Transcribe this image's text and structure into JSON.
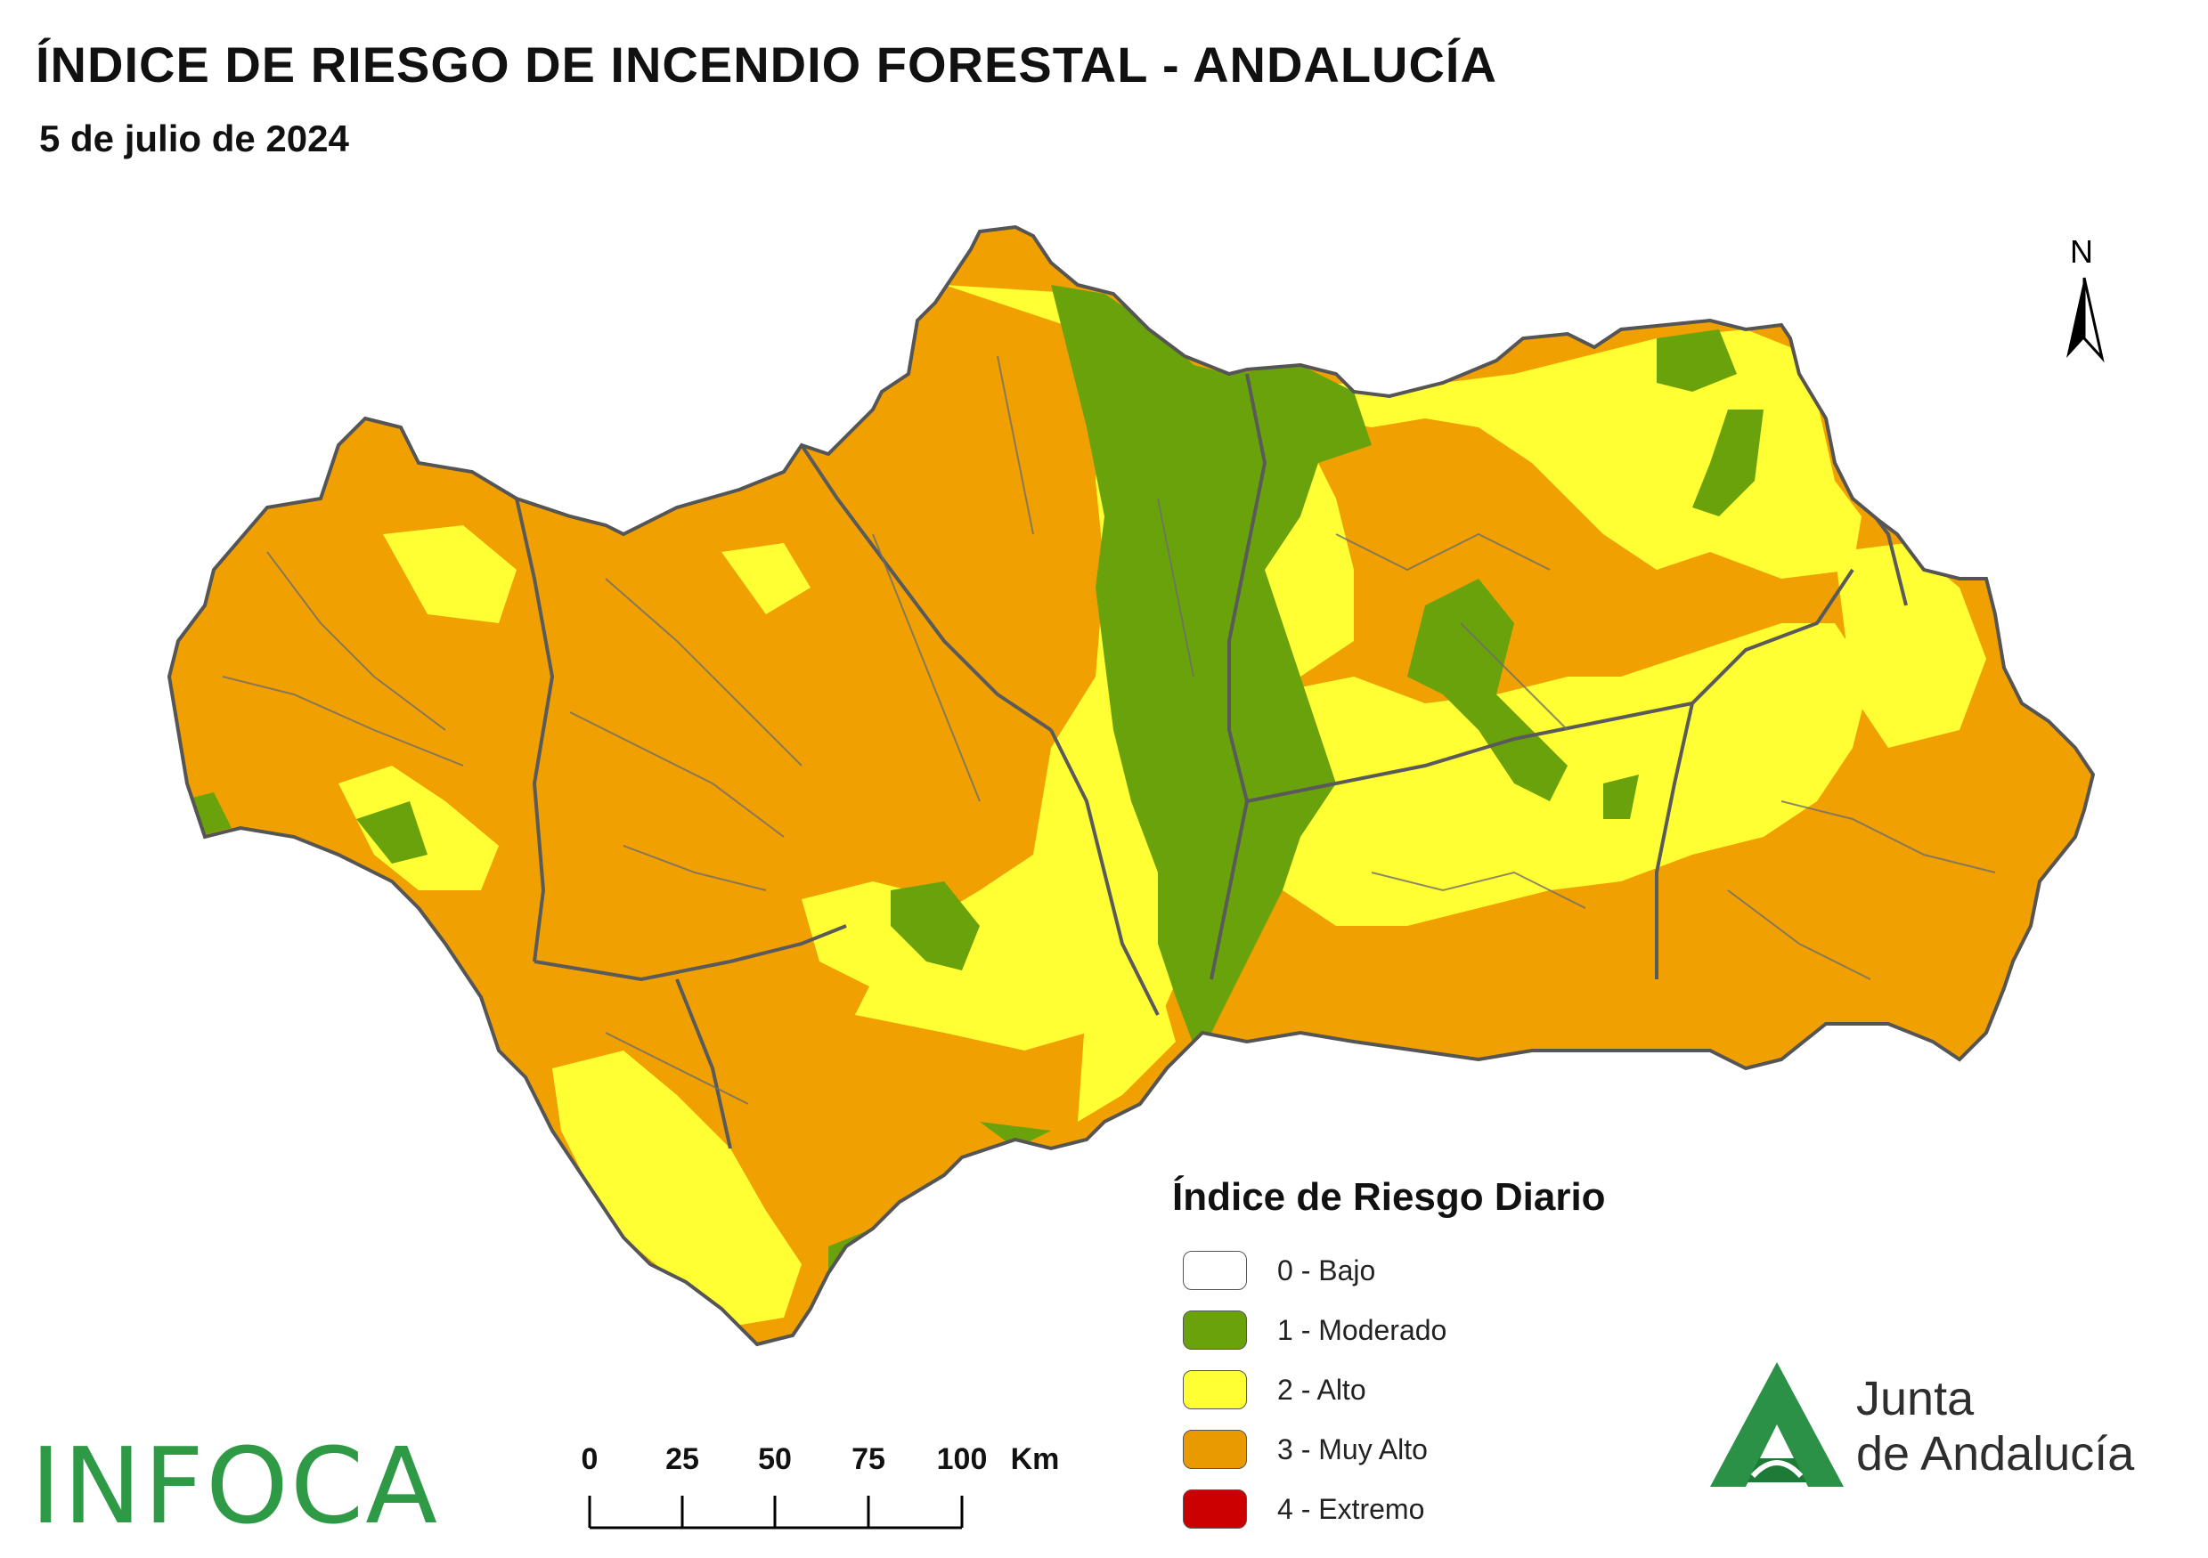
{
  "header": {
    "title": "ÍNDICE DE RIESGO DE INCENDIO FORESTAL - ANDALUCÍA",
    "date": "5 de julio de 2024"
  },
  "north_arrow": {
    "label": "N"
  },
  "legend": {
    "title": "Índice de Riesgo Diario",
    "items": [
      {
        "label": "0 - Bajo",
        "color": "#ffffff"
      },
      {
        "label": "1 - Moderado",
        "color": "#6aa20c"
      },
      {
        "label": "2 - Alto",
        "color": "#ffff33"
      },
      {
        "label": "3 - Muy Alto",
        "color": "#f0a000"
      },
      {
        "label": "4 - Extremo",
        "color": "#cc0000"
      }
    ]
  },
  "scale_bar": {
    "ticks": [
      "0",
      "25",
      "50",
      "75",
      "100"
    ],
    "unit": "Km"
  },
  "logos": {
    "infoca": "INFOCA",
    "junta_line1": "Junta",
    "junta_line2": "de Andalucía",
    "junta_color": "#2a9146"
  },
  "map": {
    "region": "Andalucía",
    "colors": {
      "moderado": "#6aa20c",
      "alto": "#ffff33",
      "muy_alto": "#f0a000",
      "borders": "#5a5a5a"
    }
  }
}
